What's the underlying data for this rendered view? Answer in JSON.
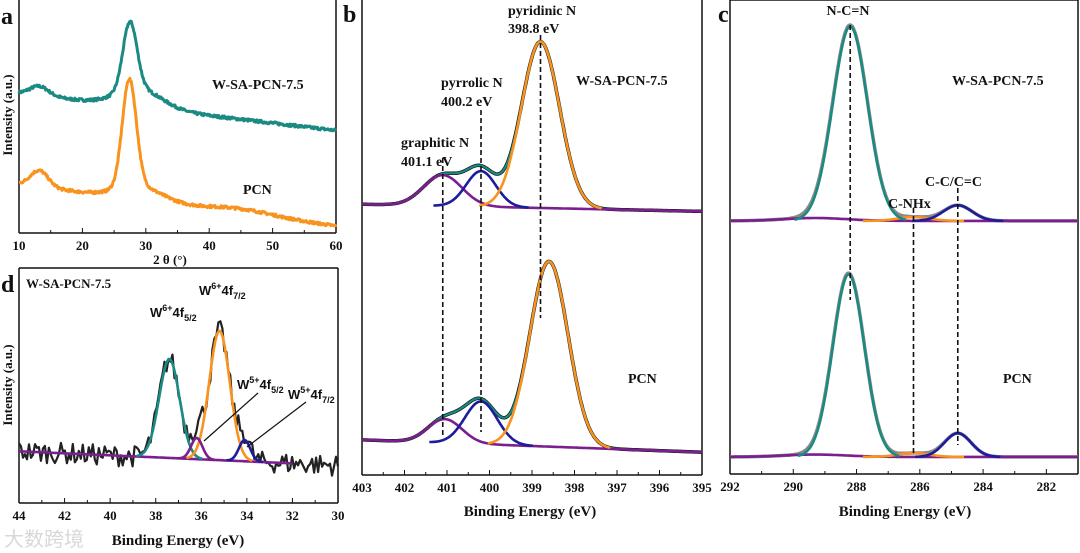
{
  "watermark": "大数跨境",
  "chart_data": [
    {
      "panel": "a",
      "type": "line",
      "xlabel": "2 θ (°)",
      "ylabel": "Intensity (a.u.)",
      "xlim": [
        10,
        60
      ],
      "xticks": [
        "10",
        "20",
        "30",
        "40",
        "50",
        "60"
      ],
      "labels": {
        "top": "W-SA-PCN-7.5",
        "bottom": "PCN"
      },
      "series": [
        {
          "name": "W-SA-PCN-7.5",
          "color": "#1a8a82",
          "baseline": [
            0.6,
            0.44
          ],
          "peaks": [
            [
              13.2,
              0.04,
              1.5
            ],
            [
              27.5,
              0.29,
              1.1
            ],
            [
              29,
              0.08,
              3.5
            ]
          ],
          "noise": 0.012
        },
        {
          "name": "PCN",
          "color": "#f7931e",
          "baseline": [
            0.21,
            0.03
          ],
          "peaks": [
            [
              13.2,
              0.07,
              1.4
            ],
            [
              27.4,
              0.46,
              1.1
            ],
            [
              29,
              0.06,
              3.5
            ],
            [
              45,
              0.02,
              5
            ]
          ],
          "noise": 0.012
        }
      ]
    },
    {
      "panel": "b",
      "type": "line",
      "xlabel": "Binding Energy (eV)",
      "xlim": [
        403,
        395
      ],
      "xticks": [
        "403",
        "402",
        "401",
        "400",
        "399",
        "398",
        "397",
        "396",
        "395"
      ],
      "labels": {
        "top": "W-SA-PCN-7.5",
        "bottom": "PCN"
      },
      "annotations": [
        {
          "name": "pyridinic N",
          "value": "398.8 eV",
          "x": 398.8
        },
        {
          "name": "pyrrolic N",
          "value": "400.2 eV",
          "x": 400.2
        },
        {
          "name": "graphitic N",
          "value": "401.1 eV",
          "x": 401.1
        }
      ],
      "spectra": [
        {
          "sample": "W-SA-PCN-7.5",
          "baseline": [
            0.57,
            0.555
          ],
          "envelope_color": "#1a8a82",
          "data_color": "#111111",
          "components": [
            {
              "name": "graphitic N",
              "color": "#7b1f8f",
              "peak": [
                401.1,
                0.065,
                0.45
              ],
              "full": true
            },
            {
              "name": "pyrrolic N",
              "color": "#1c1c9c",
              "peak": [
                400.2,
                0.075,
                0.35
              ]
            },
            {
              "name": "pyridinic N",
              "color": "#f7931e",
              "peak": [
                398.8,
                0.35,
                0.45
              ]
            }
          ]
        },
        {
          "sample": "PCN",
          "baseline": [
            0.074,
            0.048
          ],
          "envelope_color": "#1a8a82",
          "data_color": "#111111",
          "components": [
            {
              "name": "graphitic N",
              "color": "#7b1f8f",
              "peak": [
                401.05,
                0.05,
                0.4
              ],
              "full": true
            },
            {
              "name": "pyrrolic N",
              "color": "#1c1c9c",
              "peak": [
                400.2,
                0.09,
                0.38
              ]
            },
            {
              "name": "pyridinic N",
              "color": "#f7931e",
              "peak": [
                398.6,
                0.39,
                0.45
              ]
            }
          ]
        }
      ]
    },
    {
      "panel": "c",
      "type": "line",
      "xlabel": "Binding Energy (eV)",
      "xlim": [
        292,
        281
      ],
      "xticks": [
        "292",
        "290",
        "288",
        "286",
        "284",
        "282"
      ],
      "labels": {
        "top": "W-SA-PCN-7.5",
        "bottom": "PCN"
      },
      "annotations": [
        {
          "name": "N-C=N",
          "x": 288.2
        },
        {
          "name": "C-NHx",
          "x": 286.2
        },
        {
          "name": "C-C/C=C",
          "x": 284.8
        }
      ],
      "spectra": [
        {
          "sample": "W-SA-PCN-7.5",
          "baseline": [
            0.534,
            0.534
          ],
          "envelope_color": "#8a8a8a",
          "data_color": "#8a8a8a",
          "components": [
            {
              "name": "background",
              "color": "#7b1f8f",
              "peak": [
                289.3,
                0.006,
                1.0
              ],
              "full": true
            },
            {
              "name": "C-NHx",
              "color": "#f7931e",
              "peak": [
                286.2,
                0.008,
                0.5
              ]
            },
            {
              "name": "C-C/C=C",
              "color": "#1c1c9c",
              "peak": [
                284.8,
                0.033,
                0.45
              ]
            },
            {
              "name": "N-C=N",
              "color": "#1a8a82",
              "peak": [
                288.2,
                0.41,
                0.55
              ]
            }
          ]
        },
        {
          "sample": "PCN",
          "baseline": [
            0.036,
            0.036
          ],
          "envelope_color": "#8a8a8a",
          "data_color": "#8a8a8a",
          "components": [
            {
              "name": "background",
              "color": "#7b1f8f",
              "peak": [
                289.3,
                0.005,
                1.0
              ],
              "full": true
            },
            {
              "name": "C-NHx",
              "color": "#f7931e",
              "peak": [
                286.2,
                0.008,
                0.5
              ]
            },
            {
              "name": "C-C/C=C",
              "color": "#1c1c9c",
              "peak": [
                284.8,
                0.05,
                0.42
              ]
            },
            {
              "name": "N-C=N",
              "color": "#1a8a82",
              "peak": [
                288.25,
                0.385,
                0.5
              ]
            }
          ]
        }
      ]
    },
    {
      "panel": "d",
      "type": "line",
      "xlabel": "Binding Energy (eV)",
      "ylabel": "Intensity (a.u.)",
      "xlim": [
        44,
        30
      ],
      "xticks": [
        "44",
        "42",
        "40",
        "38",
        "36",
        "34",
        "32",
        "30"
      ],
      "sample": "W-SA-PCN-7.5",
      "annotations": [
        {
          "base": "W",
          "sup": "6+",
          "mid": "4f",
          "sub": "5/2"
        },
        {
          "base": "W",
          "sup": "6+",
          "mid": "4f",
          "sub": "7/2"
        },
        {
          "base": "W",
          "sup": "5+",
          "mid": "4f",
          "sub": "5/2"
        },
        {
          "base": "W",
          "sup": "5+",
          "mid": "4f",
          "sub": "7/2"
        }
      ],
      "spectra": [
        {
          "sample": "W-SA-PCN-7.5",
          "baseline": [
            0.22,
            0.16
          ],
          "envelope_color": "#555555",
          "data_color": "#222222",
          "components": [
            {
              "name": "background",
              "color": "#7b1f8f",
              "peak": [
                36,
                0.0,
                1
              ],
              "full": true
            },
            {
              "name": "W6+ 4f5/2",
              "color": "#1a8a82",
              "peak": [
                37.4,
                0.42,
                0.45
              ]
            },
            {
              "name": "W6+ 4f7/2",
              "color": "#f7931e",
              "peak": [
                35.2,
                0.55,
                0.45
              ]
            },
            {
              "name": "W5+ 4f5/2",
              "color": "#7b1f8f",
              "peak": [
                36.2,
                0.09,
                0.25
              ]
            },
            {
              "name": "W5+ 4f7/2",
              "color": "#1c1c9c",
              "peak": [
                34.1,
                0.09,
                0.25
              ]
            }
          ]
        }
      ]
    }
  ]
}
